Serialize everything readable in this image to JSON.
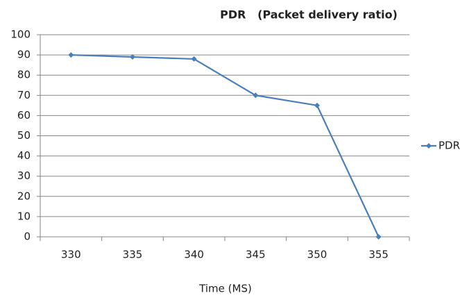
{
  "chart_data": {
    "type": "line",
    "title": "PDR   (Packet delivery ratio)",
    "x_label": "Time (MS)",
    "categories": [
      "330",
      "335",
      "340",
      "345",
      "350",
      "355"
    ],
    "series": [
      {
        "name": "PDR",
        "color": "#4a7ebb",
        "values": [
          90,
          89,
          88,
          70,
          65,
          0
        ]
      }
    ],
    "ylim": [
      0,
      100
    ],
    "yticks": [
      0,
      10,
      20,
      30,
      40,
      50,
      60,
      70,
      80,
      90,
      100
    ],
    "grid": true,
    "legend": "right"
  }
}
